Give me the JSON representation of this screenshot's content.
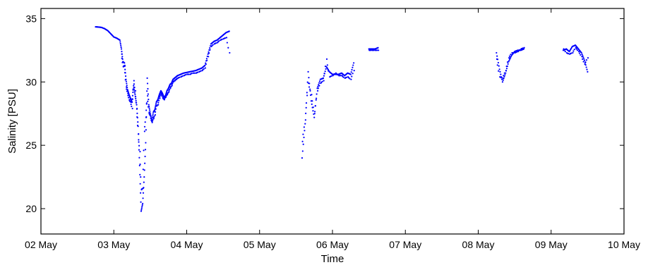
{
  "chart_data": {
    "type": "scatter",
    "xlabel": "Time",
    "ylabel": "Salinity [PSU]",
    "x_ticks": [
      "02 May",
      "03 May",
      "04 May",
      "05 May",
      "06 May",
      "07 May",
      "08 May",
      "09 May",
      "10 May"
    ],
    "y_ticks": [
      20,
      25,
      30,
      35
    ],
    "xlim": [
      "2013-05-02",
      "2013-05-10"
    ],
    "ylim": [
      18,
      35.8
    ],
    "grid": false,
    "legend": "none",
    "marker_color": "#0000ff",
    "segments": [
      {
        "x": [
          "2013-05-02T18:00",
          "2013-05-02T19:00",
          "2013-05-02T20:00",
          "2013-05-02T21:00",
          "2013-05-02T22:00",
          "2013-05-02T23:00",
          "2013-05-03T00:00",
          "2013-05-03T01:00",
          "2013-05-03T02:00",
          "2013-05-03T02:30",
          "2013-05-03T03:00",
          "2013-05-03T03:30",
          "2013-05-03T04:00",
          "2013-05-03T04:30",
          "2013-05-03T05:00",
          "2013-05-03T05:30",
          "2013-05-03T06:00",
          "2013-05-03T06:30",
          "2013-05-03T07:00",
          "2013-05-03T07:30",
          "2013-05-03T08:00",
          "2013-05-03T08:30",
          "2013-05-03T09:00",
          "2013-05-03T09:30",
          "2013-05-03T10:00",
          "2013-05-03T10:30",
          "2013-05-03T11:00",
          "2013-05-03T11:30",
          "2013-05-03T12:00",
          "2013-05-03T12:30",
          "2013-05-03T13:00",
          "2013-05-03T13:30",
          "2013-05-03T14:00",
          "2013-05-03T14:30",
          "2013-05-03T15:00",
          "2013-05-03T15:30",
          "2013-05-03T16:00",
          "2013-05-03T16:30",
          "2013-05-03T17:00",
          "2013-05-03T17:30",
          "2013-05-03T18:00",
          "2013-05-03T18:30",
          "2013-05-03T19:00",
          "2013-05-03T19:30",
          "2013-05-03T20:00",
          "2013-05-03T20:30",
          "2013-05-03T21:00",
          "2013-05-03T22:00",
          "2013-05-03T23:00",
          "2013-05-04T00:00",
          "2013-05-04T01:00",
          "2013-05-04T02:00",
          "2013-05-04T03:00",
          "2013-05-04T04:00",
          "2013-05-04T05:00",
          "2013-05-04T06:00",
          "2013-05-04T07:00",
          "2013-05-04T08:00",
          "2013-05-04T09:00",
          "2013-05-04T10:00",
          "2013-05-04T11:00",
          "2013-05-04T12:00",
          "2013-05-04T13:00",
          "2013-05-04T14:00"
        ],
        "y": [
          34.35,
          34.33,
          34.3,
          34.2,
          34.05,
          33.8,
          33.55,
          33.45,
          33.3,
          32.6,
          31.6,
          31.5,
          30.2,
          29.4,
          29.0,
          28.7,
          28.4,
          29.7,
          29.0,
          28.2,
          26.5,
          23.4,
          19.8,
          20.4,
          22.5,
          25.2,
          30.3,
          28.2,
          27.5,
          26.9,
          27.6,
          27.8,
          28.4,
          28.6,
          29.0,
          29.3,
          29.1,
          28.8,
          28.9,
          29.3,
          29.5,
          29.8,
          29.9,
          30.2,
          30.3,
          30.4,
          30.5,
          30.6,
          30.7,
          30.75,
          30.8,
          30.85,
          30.9,
          31.0,
          31.1,
          31.3,
          32.2,
          33.0,
          33.2,
          33.3,
          33.5,
          33.7,
          33.9,
          34.0
        ],
        "y2": [
          null,
          null,
          null,
          null,
          null,
          null,
          null,
          null,
          null,
          32.2,
          31.2,
          31.3,
          29.6,
          29.1,
          28.6,
          28.4,
          27.9,
          30.1,
          29.3,
          27.9,
          25.9,
          24.5,
          21.5,
          21.6,
          26.1,
          27.2,
          28.9,
          27.6,
          27.3,
          26.8,
          27.1,
          27.4,
          28.1,
          28.2,
          28.7,
          29.1,
          28.8,
          28.6,
          28.8,
          29.0,
          29.2,
          29.5,
          29.7,
          30.0,
          30.1,
          30.2,
          30.3,
          30.4,
          30.5,
          30.6,
          30.6,
          30.7,
          30.7,
          30.8,
          30.9,
          31.1,
          32.0,
          32.8,
          33.0,
          33.1,
          33.3,
          33.4,
          33.5,
          32.3
        ]
      },
      {
        "x": [
          "2013-05-05T14:00",
          "2013-05-05T15:00",
          "2013-05-05T16:00",
          "2013-05-05T17:00",
          "2013-05-05T18:00",
          "2013-05-05T19:00",
          "2013-05-05T20:00",
          "2013-05-05T21:00",
          "2013-05-05T22:00",
          "2013-05-05T23:00",
          "2013-05-06T00:00",
          "2013-05-06T01:00",
          "2013-05-06T02:00",
          "2013-05-06T03:00",
          "2013-05-06T04:00",
          "2013-05-06T05:00",
          "2013-05-06T06:00",
          "2013-05-06T07:00"
        ],
        "y": [
          24.0,
          26.7,
          30.8,
          28.5,
          27.2,
          29.5,
          30.2,
          30.3,
          31.2,
          30.8,
          30.6,
          30.6,
          30.6,
          30.7,
          30.5,
          30.7,
          30.6,
          31.5
        ],
        "y2": [
          25.3,
          27.0,
          29.9,
          29.0,
          27.5,
          29.3,
          29.9,
          30.1,
          31.8,
          30.4,
          30.5,
          30.7,
          30.5,
          30.5,
          30.3,
          30.4,
          30.2,
          30.9
        ]
      },
      {
        "x": [
          "2013-05-06T12:00",
          "2013-05-06T13:00",
          "2013-05-06T14:00",
          "2013-05-06T15:00"
        ],
        "y": [
          32.6,
          32.6,
          32.6,
          32.7
        ],
        "y2": [
          32.5,
          32.5,
          32.5,
          32.5
        ]
      },
      {
        "x": [
          "2013-05-08T06:00",
          "2013-05-08T07:00",
          "2013-05-08T08:00",
          "2013-05-08T09:00",
          "2013-05-08T10:00",
          "2013-05-08T11:00",
          "2013-05-08T12:00",
          "2013-05-08T13:00",
          "2013-05-08T14:00",
          "2013-05-08T15:00"
        ],
        "y": [
          32.3,
          31.0,
          30.0,
          30.7,
          31.6,
          32.1,
          32.4,
          32.5,
          32.5,
          32.6
        ],
        "y2": [
          31.8,
          30.4,
          30.3,
          30.9,
          31.9,
          32.3,
          32.3,
          32.4,
          32.6,
          32.7
        ]
      },
      {
        "x": [
          "2013-05-09T04:00",
          "2013-05-09T05:00",
          "2013-05-09T06:00",
          "2013-05-09T07:00",
          "2013-05-09T08:00",
          "2013-05-09T09:00",
          "2013-05-09T10:00",
          "2013-05-09T11:00",
          "2013-05-09T12:00"
        ],
        "y": [
          32.5,
          32.6,
          32.4,
          32.8,
          32.9,
          32.6,
          32.3,
          31.7,
          30.8
        ],
        "y2": [
          32.6,
          32.3,
          32.2,
          32.3,
          32.7,
          32.4,
          32.0,
          31.4,
          31.9
        ]
      }
    ]
  }
}
